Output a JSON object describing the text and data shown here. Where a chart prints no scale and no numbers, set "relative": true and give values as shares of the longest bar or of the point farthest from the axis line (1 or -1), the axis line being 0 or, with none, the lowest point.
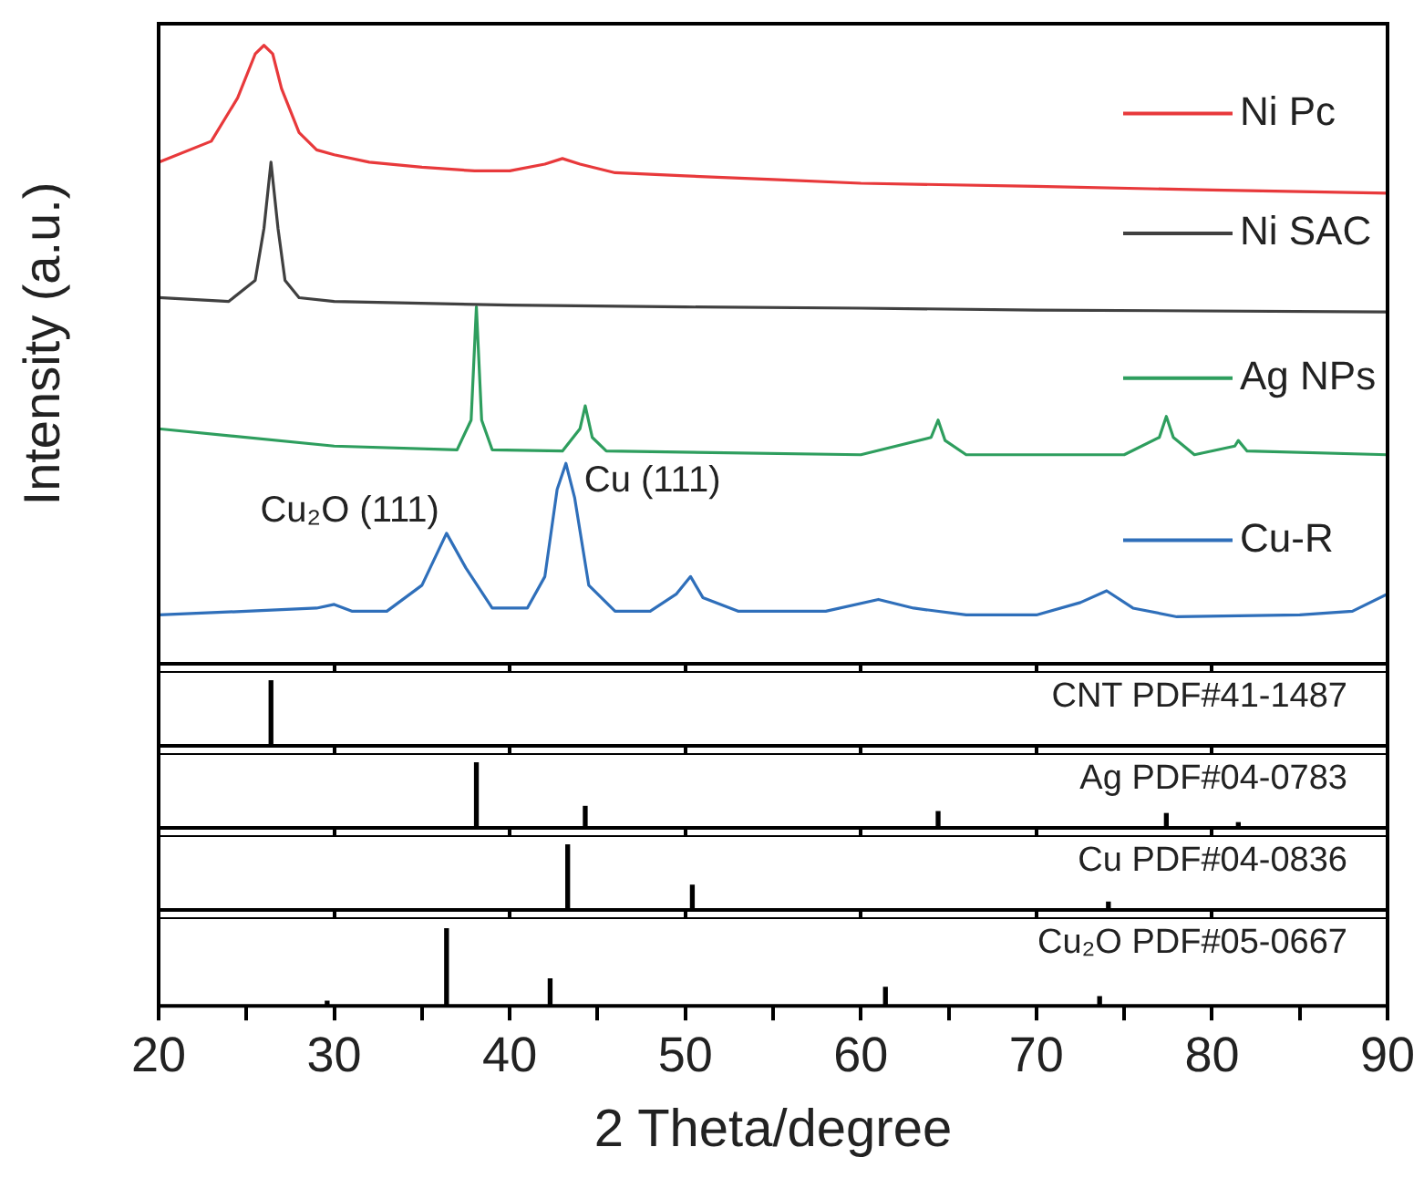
{
  "chart_data": [
    {
      "type": "line",
      "relative": true,
      "ylabel": "Intensity (a.u.)",
      "xlim": [
        20,
        90
      ],
      "xticks": [
        20,
        30,
        40,
        50,
        60,
        70,
        80,
        90
      ],
      "tick_labels": false,
      "legend": "right",
      "annotations": [
        {
          "text": "Cu₂O (111)",
          "x": 36.4,
          "y": 0.211
        },
        {
          "text": "Cu (111)",
          "x": 43.2,
          "y": 0.324
        }
      ],
      "series": [
        {
          "name": "Ni Pc",
          "color": "#e8393b",
          "x": [
            20,
            23,
            24.5,
            25.5,
            26,
            26.5,
            27,
            28,
            29,
            30,
            32,
            35,
            38,
            40,
            42,
            43,
            44,
            46,
            50,
            55,
            60,
            70,
            80,
            90
          ],
          "values": [
            0.811,
            0.845,
            0.915,
            0.986,
            1.0,
            0.986,
            0.93,
            0.859,
            0.831,
            0.823,
            0.811,
            0.803,
            0.797,
            0.797,
            0.808,
            0.817,
            0.808,
            0.794,
            0.789,
            0.783,
            0.777,
            0.772,
            0.766,
            0.761
          ]
        },
        {
          "name": "Ni SAC",
          "color": "#404040",
          "x": [
            20,
            24,
            25.5,
            26,
            26.4,
            26.8,
            27.2,
            28,
            30,
            40,
            50,
            60,
            70,
            90
          ],
          "values": [
            0.592,
            0.586,
            0.62,
            0.704,
            0.811,
            0.704,
            0.62,
            0.592,
            0.586,
            0.58,
            0.577,
            0.575,
            0.572,
            0.569
          ]
        },
        {
          "name": "Ag NPs",
          "color": "#2e9e5e",
          "x": [
            20,
            30,
            37,
            37.8,
            38.1,
            38.4,
            39,
            43,
            44,
            44.3,
            44.7,
            45.5,
            60,
            64,
            64.4,
            64.8,
            66,
            75,
            77,
            77.4,
            77.8,
            79,
            81.3,
            81.5,
            82,
            90
          ],
          "values": [
            0.38,
            0.352,
            0.346,
            0.394,
            0.577,
            0.394,
            0.346,
            0.344,
            0.38,
            0.417,
            0.366,
            0.344,
            0.338,
            0.366,
            0.394,
            0.361,
            0.338,
            0.338,
            0.366,
            0.4,
            0.366,
            0.338,
            0.352,
            0.361,
            0.344,
            0.338
          ]
        },
        {
          "name": "Cu-R",
          "color": "#2f6fba",
          "x": [
            20,
            25,
            29,
            30,
            31,
            33,
            35,
            36.4,
            37.5,
            39,
            41,
            42,
            42.7,
            43.2,
            43.7,
            44.5,
            46,
            48,
            49.5,
            50.3,
            51,
            53,
            58,
            61,
            63,
            66,
            70,
            72.5,
            74,
            75.5,
            78,
            85,
            88,
            90
          ],
          "values": [
            0.079,
            0.085,
            0.09,
            0.096,
            0.085,
            0.085,
            0.127,
            0.211,
            0.155,
            0.09,
            0.09,
            0.141,
            0.282,
            0.324,
            0.268,
            0.127,
            0.085,
            0.085,
            0.113,
            0.141,
            0.107,
            0.085,
            0.085,
            0.104,
            0.09,
            0.079,
            0.079,
            0.099,
            0.118,
            0.09,
            0.076,
            0.079,
            0.085,
            0.113
          ]
        }
      ]
    },
    {
      "type": "bar",
      "title": "CNT PDF#41-1487",
      "relative": true,
      "xlim": [
        20,
        90
      ],
      "xticks": [
        20,
        30,
        40,
        50,
        60,
        70,
        80,
        90
      ],
      "tick_labels": false,
      "color": "#000000",
      "x": [
        26.4
      ],
      "values": [
        1
      ]
    },
    {
      "type": "bar",
      "title": "Ag PDF#04-0783",
      "relative": true,
      "xlim": [
        20,
        90
      ],
      "xticks": [
        20,
        30,
        40,
        50,
        60,
        70,
        80,
        90
      ],
      "tick_labels": false,
      "color": "#000000",
      "x": [
        38.1,
        44.3,
        64.4,
        77.4,
        81.5
      ],
      "values": [
        1,
        0.33,
        0.25,
        0.22,
        0.08
      ]
    },
    {
      "type": "bar",
      "title": "Cu PDF#04-0836",
      "relative": true,
      "xlim": [
        20,
        90
      ],
      "xticks": [
        20,
        30,
        40,
        50,
        60,
        70,
        80,
        90
      ],
      "tick_labels": false,
      "color": "#000000",
      "x": [
        43.3,
        50.4,
        74.1
      ],
      "values": [
        1,
        0.38,
        0.12
      ]
    },
    {
      "type": "bar",
      "title": "Cu₂O PDF#05-0667",
      "relative": true,
      "xlim": [
        20,
        90
      ],
      "tick_labels": "x",
      "color": "#000000",
      "x": [
        29.6,
        36.4,
        42.3,
        61.4,
        73.6
      ],
      "values": [
        0.06,
        1,
        0.35,
        0.24,
        0.12
      ],
      "xlabel": "2 Theta/degree",
      "xticks": [
        20,
        {
          "value": 25,
          "label": null
        },
        30,
        {
          "value": 35,
          "label": null
        },
        40,
        {
          "value": 45,
          "label": null
        },
        50,
        {
          "value": 55,
          "label": null
        },
        60,
        {
          "value": 65,
          "label": null
        },
        70,
        {
          "value": 75,
          "label": null
        },
        80,
        {
          "value": 85,
          "label": null
        },
        90
      ]
    }
  ]
}
